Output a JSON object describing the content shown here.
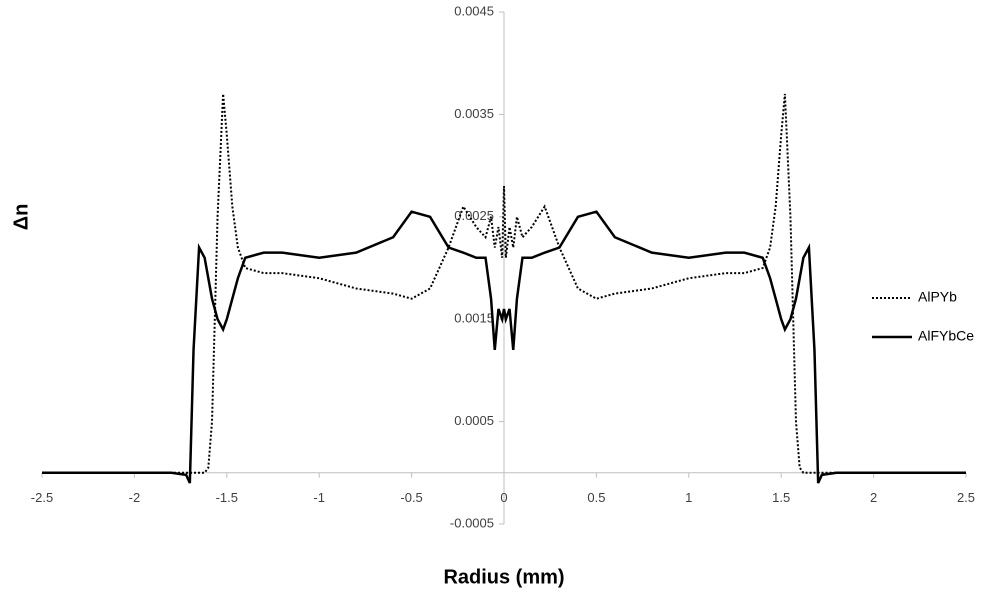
{
  "chart_data": {
    "type": "line",
    "x_label": "Radius (mm)",
    "y_label": "Δn",
    "xlim": [
      -2.5,
      2.5
    ],
    "ylim": [
      -0.0005,
      0.0045
    ],
    "xticks": [
      -2.5,
      -2,
      -1.5,
      -1,
      -0.5,
      0,
      0.5,
      1,
      1.5,
      2,
      2.5
    ],
    "yticks": [
      -0.0005,
      0.0005,
      0.0015,
      0.0025,
      0.0035,
      0.0045
    ],
    "legend": "right",
    "x": [
      -2.5,
      -2,
      -1.8,
      -1.72,
      -1.7,
      -1.68,
      -1.65,
      -1.62,
      -1.6,
      -1.58,
      -1.55,
      -1.52,
      -1.5,
      -1.47,
      -1.44,
      -1.4,
      -1.3,
      -1.2,
      -1.0,
      -0.8,
      -0.6,
      -0.5,
      -0.4,
      -0.3,
      -0.22,
      -0.15,
      -0.1,
      -0.07,
      -0.05,
      -0.03,
      -0.01,
      0,
      0.01,
      0.03,
      0.05,
      0.07,
      0.1,
      0.15,
      0.22,
      0.3,
      0.4,
      0.5,
      0.6,
      0.8,
      1.0,
      1.2,
      1.3,
      1.4,
      1.44,
      1.47,
      1.5,
      1.52,
      1.55,
      1.58,
      1.6,
      1.62,
      1.65,
      1.68,
      1.7,
      1.72,
      1.8,
      2.0,
      2.5
    ],
    "series": [
      {
        "name": "AlPYb",
        "color": "#000000",
        "style": "dotted",
        "values": [
          0,
          0,
          0,
          0,
          0,
          0,
          0,
          0,
          5e-05,
          0.0005,
          0.0025,
          0.0037,
          0.0033,
          0.0026,
          0.0022,
          0.002,
          0.00195,
          0.00195,
          0.0019,
          0.0018,
          0.00175,
          0.0017,
          0.0018,
          0.0022,
          0.0026,
          0.0024,
          0.0023,
          0.0025,
          0.0022,
          0.0024,
          0.0021,
          0.0028,
          0.0021,
          0.0024,
          0.0022,
          0.0025,
          0.0023,
          0.0024,
          0.0026,
          0.0022,
          0.0018,
          0.0017,
          0.00175,
          0.0018,
          0.0019,
          0.00195,
          0.00195,
          0.002,
          0.0022,
          0.0026,
          0.0033,
          0.0037,
          0.0025,
          0.0005,
          5e-05,
          0,
          0,
          0,
          0,
          0,
          0,
          0,
          0
        ]
      },
      {
        "name": "AlFYbCe",
        "color": "#000000",
        "style": "solid",
        "values": [
          0,
          0,
          0,
          -2e-05,
          -0.0001,
          0.0012,
          0.0022,
          0.0021,
          0.0019,
          0.0017,
          0.0015,
          0.0014,
          0.0015,
          0.0017,
          0.0019,
          0.0021,
          0.00215,
          0.00215,
          0.0021,
          0.00215,
          0.0023,
          0.00255,
          0.0025,
          0.0022,
          0.00215,
          0.0021,
          0.0021,
          0.0017,
          0.0012,
          0.0016,
          0.0015,
          0.0016,
          0.0015,
          0.0016,
          0.0012,
          0.0017,
          0.0021,
          0.0021,
          0.00215,
          0.0022,
          0.0025,
          0.00255,
          0.0023,
          0.00215,
          0.0021,
          0.00215,
          0.00215,
          0.0021,
          0.0019,
          0.0017,
          0.0015,
          0.0014,
          0.0015,
          0.0017,
          0.0019,
          0.0021,
          0.0022,
          0.0012,
          -0.0001,
          -2e-05,
          0,
          0,
          0
        ]
      }
    ]
  }
}
